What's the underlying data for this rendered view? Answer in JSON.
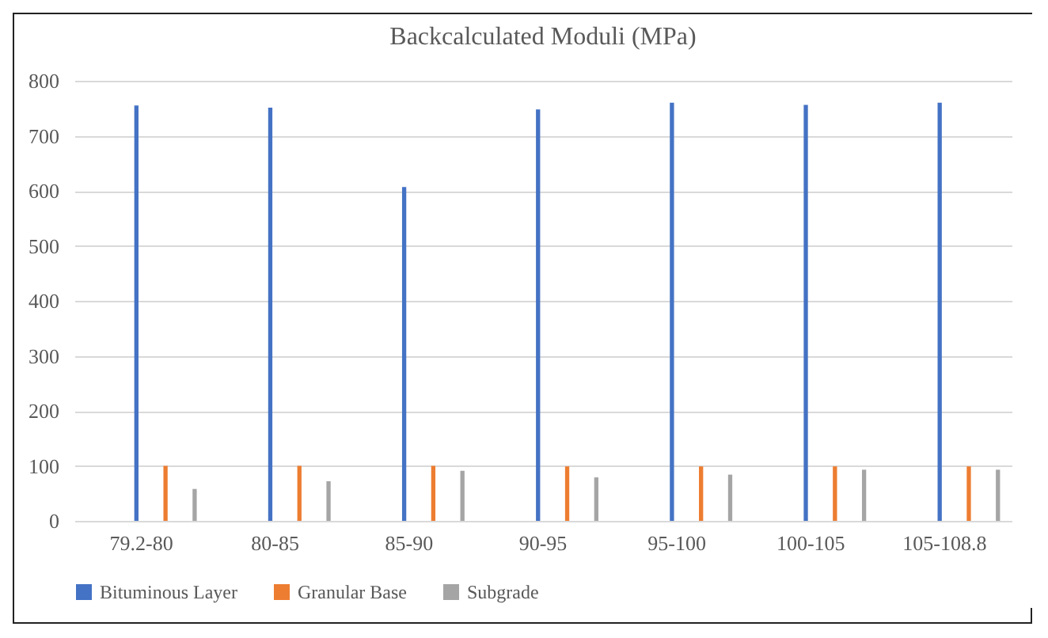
{
  "chart_data": {
    "type": "bar",
    "title": "Backcalculated Moduli (MPa)",
    "categories": [
      "79.2-80",
      "80-85",
      "85-90",
      "90-95",
      "95-100",
      "100-105",
      "105-108.8"
    ],
    "series": [
      {
        "name": "Bituminous Layer",
        "color": "#4472c4",
        "values": [
          755,
          751,
          607,
          748,
          760,
          756,
          760
        ]
      },
      {
        "name": "Granular Base",
        "color": "#ed7d31",
        "values": [
          100,
          100,
          100,
          99,
          99,
          99,
          99
        ]
      },
      {
        "name": "Subgrade",
        "color": "#a5a5a5",
        "values": [
          58,
          72,
          91,
          79,
          84,
          93,
          93
        ]
      }
    ],
    "ylim": [
      0,
      800
    ],
    "yticks": [
      0,
      100,
      200,
      300,
      400,
      500,
      600,
      700,
      800
    ],
    "grid": "y",
    "legend": "bottom"
  }
}
